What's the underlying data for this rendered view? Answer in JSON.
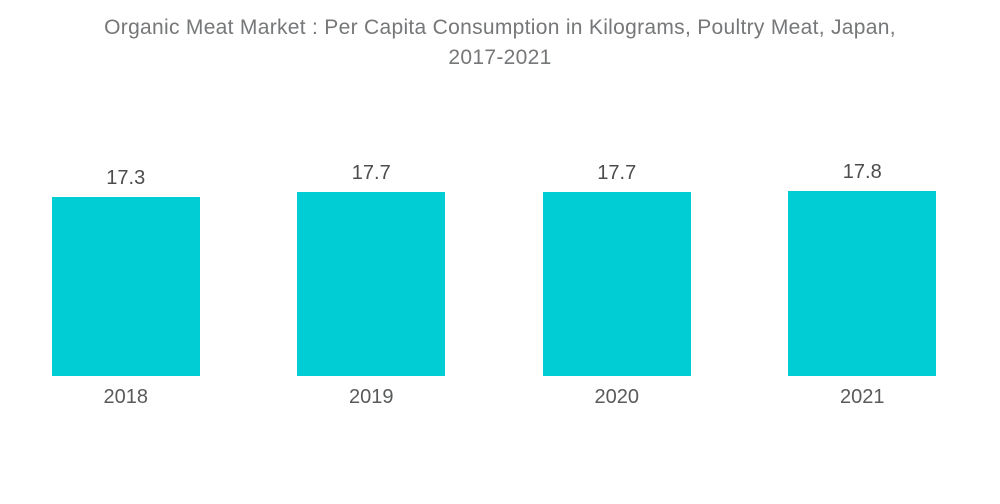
{
  "header": {
    "title_lines": [
      "Organic Meat Market : Per Capita Consumption in Kilograms, Poultry Meat, Japan,",
      "2017-2021"
    ]
  },
  "chart_data": {
    "type": "bar",
    "title": "Organic Meat Market : Per Capita Consumption in Kilograms, Poultry Meat, Japan, 2017-2021",
    "categories": [
      "2018",
      "2019",
      "2020",
      "2021"
    ],
    "values": [
      17.3,
      17.7,
      17.7,
      17.8
    ],
    "data_labels": [
      "17.3",
      "17.7",
      "17.7",
      "17.8"
    ],
    "unit": "kilograms",
    "grid": false,
    "legend": false,
    "xlabel": "",
    "ylabel": "",
    "colors": {
      "bar": "#00cdd4",
      "title": "#757779",
      "value_label": "#4d4d4f",
      "axis_label": "#595a5c",
      "background": "#ffffff"
    }
  }
}
